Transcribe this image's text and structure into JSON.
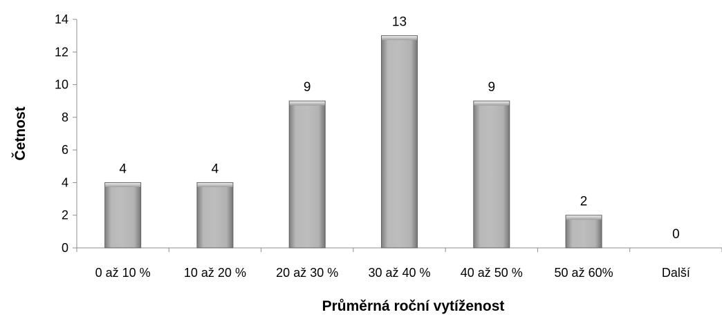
{
  "chart_data": {
    "type": "bar",
    "categories": [
      "0 až 10 %",
      "10 až 20 %",
      "20 až 30 %",
      "30 až 40 %",
      "40 až 50 %",
      "50 až 60%",
      "Další"
    ],
    "values": [
      4,
      4,
      9,
      13,
      9,
      2,
      0
    ],
    "data_labels": [
      "4",
      "4",
      "9",
      "13",
      "9",
      "2",
      "0"
    ],
    "xlabel": "Průměrná roční vytíženost",
    "ylabel": "Četnost",
    "ylim": [
      0,
      14
    ],
    "yticks": [
      0,
      2,
      4,
      6,
      8,
      10,
      12,
      14
    ],
    "grid": false,
    "legend": "none",
    "colors": {
      "bar": "#a6a6a6",
      "bar_edge": "#5f5f5f",
      "axis": "#8c8c8c"
    }
  }
}
